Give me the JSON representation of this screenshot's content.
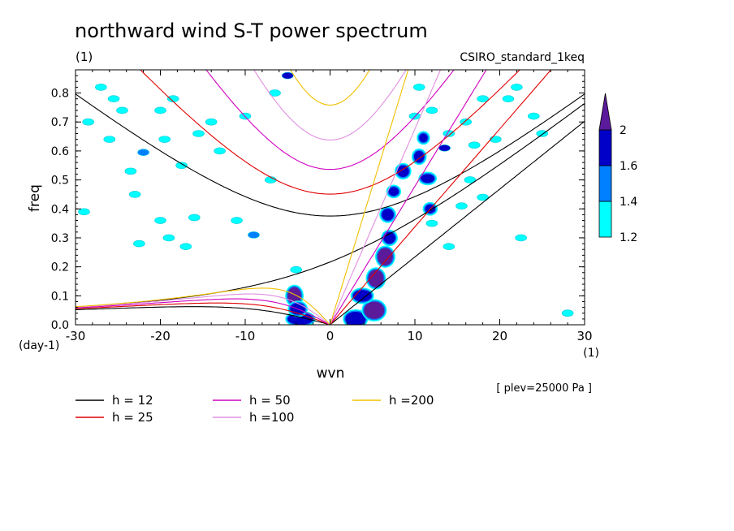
{
  "chart_data": {
    "type": "contour",
    "title": "northward wind S-T power spectrum",
    "subtitle_left": "(1)",
    "subtitle_right": "CSIRO_standard_1keq",
    "xlabel": "wvn",
    "ylabel": "freq",
    "x_unit": "(1)",
    "y_unit": "(day-1)",
    "xlim": [
      -30,
      30
    ],
    "ylim": [
      0,
      0.88
    ],
    "x_ticks": [
      -30,
      -20,
      -10,
      0,
      10,
      20,
      30
    ],
    "x_tick_labels": [
      "-30",
      "-20",
      "-10",
      "0",
      "10",
      "20",
      "30"
    ],
    "y_ticks": [
      0,
      0.1,
      0.2,
      0.3,
      0.4,
      0.5,
      0.6,
      0.7,
      0.8
    ],
    "y_tick_labels": [
      "0.0",
      "0.1",
      "0.2",
      "0.3",
      "0.4",
      "0.5",
      "0.6",
      "0.7",
      "0.8"
    ],
    "note": "[ plev=25000 Pa ]",
    "colorbar": {
      "levels": [
        1.2,
        1.4,
        1.6,
        2
      ],
      "labels": [
        "1.2",
        "1.4",
        "1.6",
        "2"
      ],
      "colors": [
        "#00ffff",
        "#0080ff",
        "#0000c8",
        "#5a1a9a"
      ]
    },
    "dispersion_curves": [
      {
        "name": "h = 12",
        "h": 12,
        "color": "#000000"
      },
      {
        "name": "h = 25",
        "h": 25,
        "color": "#e00000"
      },
      {
        "name": "h = 50",
        "h": 50,
        "color": "#d000c0"
      },
      {
        "name": "h =100",
        "h": 100,
        "color": "#e090e0"
      },
      {
        "name": "h =200",
        "h": 200,
        "color": "#f0c000"
      }
    ],
    "power_patches": [
      {
        "x": -28.5,
        "y": 0.7,
        "level": 1.2
      },
      {
        "x": -27,
        "y": 0.82,
        "level": 1.2
      },
      {
        "x": -25.5,
        "y": 0.78,
        "level": 1.2
      },
      {
        "x": -24.5,
        "y": 0.74,
        "level": 1.2
      },
      {
        "x": -26,
        "y": 0.64,
        "level": 1.2
      },
      {
        "x": -23.5,
        "y": 0.53,
        "level": 1.2
      },
      {
        "x": -22,
        "y": 0.595,
        "level": 1.4
      },
      {
        "x": -20,
        "y": 0.74,
        "level": 1.2
      },
      {
        "x": -19.5,
        "y": 0.64,
        "level": 1.2
      },
      {
        "x": -18.5,
        "y": 0.78,
        "level": 1.2
      },
      {
        "x": -17.5,
        "y": 0.55,
        "level": 1.2
      },
      {
        "x": -15.5,
        "y": 0.66,
        "level": 1.2
      },
      {
        "x": -14,
        "y": 0.7,
        "level": 1.2
      },
      {
        "x": -13,
        "y": 0.6,
        "level": 1.2
      },
      {
        "x": -10,
        "y": 0.72,
        "level": 1.2
      },
      {
        "x": -9,
        "y": 0.31,
        "level": 1.4
      },
      {
        "x": -20,
        "y": 0.36,
        "level": 1.2
      },
      {
        "x": -19,
        "y": 0.3,
        "level": 1.2
      },
      {
        "x": -16,
        "y": 0.37,
        "level": 1.2
      },
      {
        "x": -11,
        "y": 0.36,
        "level": 1.2
      },
      {
        "x": -7,
        "y": 0.5,
        "level": 1.2
      },
      {
        "x": -6.5,
        "y": 0.8,
        "level": 1.2
      },
      {
        "x": -5,
        "y": 0.86,
        "level": 1.6
      },
      {
        "x": -4,
        "y": 0.19,
        "level": 1.2
      },
      {
        "x": -17,
        "y": 0.27,
        "level": 1.2
      },
      {
        "x": -23,
        "y": 0.45,
        "level": 1.2
      },
      {
        "x": -22.5,
        "y": 0.28,
        "level": 1.2
      },
      {
        "x": -29,
        "y": 0.39,
        "level": 1.2
      },
      {
        "x": 10,
        "y": 0.72,
        "level": 1.2
      },
      {
        "x": 10.5,
        "y": 0.82,
        "level": 1.2
      },
      {
        "x": 12,
        "y": 0.74,
        "level": 1.2
      },
      {
        "x": 14,
        "y": 0.66,
        "level": 1.2
      },
      {
        "x": 13.5,
        "y": 0.61,
        "level": 1.6
      },
      {
        "x": 16,
        "y": 0.7,
        "level": 1.2
      },
      {
        "x": 16.5,
        "y": 0.5,
        "level": 1.2
      },
      {
        "x": 17,
        "y": 0.62,
        "level": 1.2
      },
      {
        "x": 18,
        "y": 0.78,
        "level": 1.2
      },
      {
        "x": 19.5,
        "y": 0.64,
        "level": 1.2
      },
      {
        "x": 21,
        "y": 0.78,
        "level": 1.2
      },
      {
        "x": 22,
        "y": 0.82,
        "level": 1.2
      },
      {
        "x": 24,
        "y": 0.72,
        "level": 1.2
      },
      {
        "x": 25,
        "y": 0.66,
        "level": 1.2
      },
      {
        "x": 18,
        "y": 0.44,
        "level": 1.2
      },
      {
        "x": 15.5,
        "y": 0.41,
        "level": 1.2
      },
      {
        "x": 14,
        "y": 0.27,
        "level": 1.2
      },
      {
        "x": 22.5,
        "y": 0.3,
        "level": 1.2
      },
      {
        "x": 28,
        "y": 0.04,
        "level": 1.2
      },
      {
        "x": 12,
        "y": 0.35,
        "level": 1.2
      }
    ],
    "power_bands": [
      {
        "x": -3.5,
        "y": 0.02,
        "w": 3.0,
        "h": 0.04,
        "level": 1.6
      },
      {
        "x": -4.2,
        "y": 0.1,
        "w": 1.6,
        "h": 0.06,
        "level": 2
      },
      {
        "x": -3.8,
        "y": 0.055,
        "w": 1.8,
        "h": 0.04,
        "level": 1.6
      },
      {
        "x": 3.0,
        "y": 0.02,
        "w": 2.4,
        "h": 0.05,
        "level": 1.6
      },
      {
        "x": 5.2,
        "y": 0.05,
        "w": 2.4,
        "h": 0.06,
        "level": 2
      },
      {
        "x": 3.8,
        "y": 0.1,
        "w": 2.2,
        "h": 0.04,
        "level": 1.6
      },
      {
        "x": 5.4,
        "y": 0.16,
        "w": 1.8,
        "h": 0.06,
        "level": 2
      },
      {
        "x": 6.5,
        "y": 0.235,
        "w": 1.8,
        "h": 0.06,
        "level": 2
      },
      {
        "x": 7.0,
        "y": 0.3,
        "w": 1.4,
        "h": 0.04,
        "level": 1.6
      },
      {
        "x": 6.8,
        "y": 0.38,
        "w": 1.4,
        "h": 0.04,
        "level": 1.6
      },
      {
        "x": 7.5,
        "y": 0.46,
        "w": 1.2,
        "h": 0.03,
        "level": 1.6
      },
      {
        "x": 8.6,
        "y": 0.53,
        "w": 1.4,
        "h": 0.04,
        "level": 1.6
      },
      {
        "x": 10.5,
        "y": 0.58,
        "w": 1.2,
        "h": 0.04,
        "level": 1.6
      },
      {
        "x": 11.0,
        "y": 0.645,
        "w": 1.0,
        "h": 0.03,
        "level": 1.6
      },
      {
        "x": 11.5,
        "y": 0.505,
        "w": 1.6,
        "h": 0.03,
        "level": 1.6
      },
      {
        "x": 11.8,
        "y": 0.4,
        "w": 1.2,
        "h": 0.03,
        "level": 1.6
      }
    ]
  }
}
